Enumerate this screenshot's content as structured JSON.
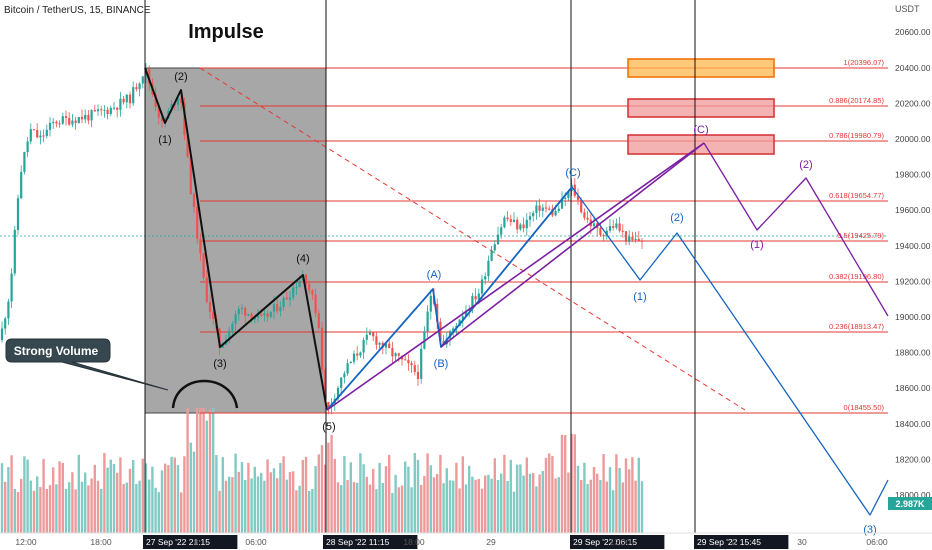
{
  "header": {
    "symbol_title": "Bitcoin / TetherUS, 15, BINANCE"
  },
  "price_scale": {
    "unit": "USDT",
    "ticks": [
      20600,
      20400,
      20200,
      20000,
      19800,
      19600,
      19400,
      19200,
      19000,
      18800,
      18600,
      18400,
      18200,
      18000
    ],
    "tick_labels": [
      "20600.00",
      "20400.00",
      "20200.00",
      "20000.00",
      "19800.00",
      "19600.00",
      "19400.00",
      "19200.00",
      "19000.00",
      "18800.00",
      "18600.00",
      "18400.00",
      "18200.00",
      "18000.00"
    ],
    "volume_badge": "2.987K"
  },
  "time_axis": {
    "labels": [
      {
        "text": "12:00",
        "highlight": false
      },
      {
        "text": "18:00",
        "highlight": false
      },
      {
        "text": "27 Sep '22  21:15",
        "highlight": true
      },
      {
        "text": "8",
        "highlight": false
      },
      {
        "text": "06:00",
        "highlight": false
      },
      {
        "text": "28 Sep '22  11:15",
        "highlight": true
      },
      {
        "text": "18:00",
        "highlight": false
      },
      {
        "text": "29",
        "highlight": false
      },
      {
        "text": "29 Sep '22  06:15",
        "highlight": true
      },
      {
        "text": "12:00",
        "highlight": false
      },
      {
        "text": "29 Sep '22  15:45",
        "highlight": true
      },
      {
        "text": "0",
        "highlight": false
      },
      {
        "text": "30",
        "highlight": false
      },
      {
        "text": "06:00",
        "highlight": false
      }
    ]
  },
  "annotations": {
    "impulse_label": "Impulse",
    "callout_label": "Strong Volume",
    "wave_labels": [
      "(1)",
      "(2)",
      "(3)",
      "(4)",
      "(5)",
      "(A)",
      "(B)",
      "(C)",
      "(C)",
      "(1)",
      "(2)",
      "(1)",
      "(2)",
      "(3)"
    ]
  },
  "fib_levels": [
    {
      "ratio": "1",
      "price": 20396.07,
      "label": "1(20396.07)"
    },
    {
      "ratio": "0.886",
      "price": 20174.85,
      "label": "0.886(20174.85)"
    },
    {
      "ratio": "0.786",
      "price": 19980.79,
      "label": "0.786(19980.79)"
    },
    {
      "ratio": "0.618",
      "price": 19654.77,
      "label": "0.618(19654.77)"
    },
    {
      "ratio": "0.5",
      "price": 19425.79,
      "label": "0.5(19425.79)"
    },
    {
      "ratio": "0.382",
      "price": 19196.8,
      "label": "0.382(19196.80)"
    },
    {
      "ratio": "0.236",
      "price": 18913.47,
      "label": "0.236(18913.47)"
    },
    {
      "ratio": "0",
      "price": 18455.5,
      "label": "0(18455.50)"
    }
  ],
  "colors": {
    "up_candle": "#26a69a",
    "down_candle": "#ef5350",
    "fib_line": "#e53935",
    "impulse_box": "#9e9e9e",
    "wave_blue": "#1565c0",
    "wave_purple": "#7b1fa2",
    "zone_orange": "#ffb74d",
    "zone_red": "#ef9a9a"
  },
  "chart_data": {
    "type": "candlestick",
    "title": "Bitcoin / TetherUS, 15, BINANCE",
    "ylabel": "USDT",
    "ylim": [
      17900,
      20700
    ],
    "impulse_wave_points": [
      {
        "label": "start",
        "price": 20396
      },
      {
        "label": "(1)",
        "price": 20080
      },
      {
        "label": "(2)",
        "price": 20270
      },
      {
        "label": "(3)",
        "price": 18830
      },
      {
        "label": "(4)",
        "price": 19250
      },
      {
        "label": "(5)",
        "price": 18455
      }
    ],
    "correction_points": [
      {
        "label": "(A)",
        "price": 19170
      },
      {
        "label": "(B)",
        "price": 18830
      },
      {
        "label": "(C)",
        "price": 19730
      }
    ],
    "projection_blue": [
      {
        "label": "(C)",
        "price": 19730
      },
      {
        "label": "(1)",
        "price": 19200
      },
      {
        "label": "(2)",
        "price": 19480
      },
      {
        "label": "(3)",
        "price": 17990
      }
    ],
    "projection_purple": [
      {
        "label": "C",
        "price": 19980
      },
      {
        "label": "(1)",
        "price": 19480
      },
      {
        "label": "(2)",
        "price": 19780
      },
      {
        "label": "end",
        "price": 19010
      }
    ],
    "target_zones": [
      {
        "low": 20360,
        "high": 20450
      },
      {
        "low": 20150,
        "high": 20230
      },
      {
        "low": 19930,
        "high": 20030
      }
    ]
  }
}
